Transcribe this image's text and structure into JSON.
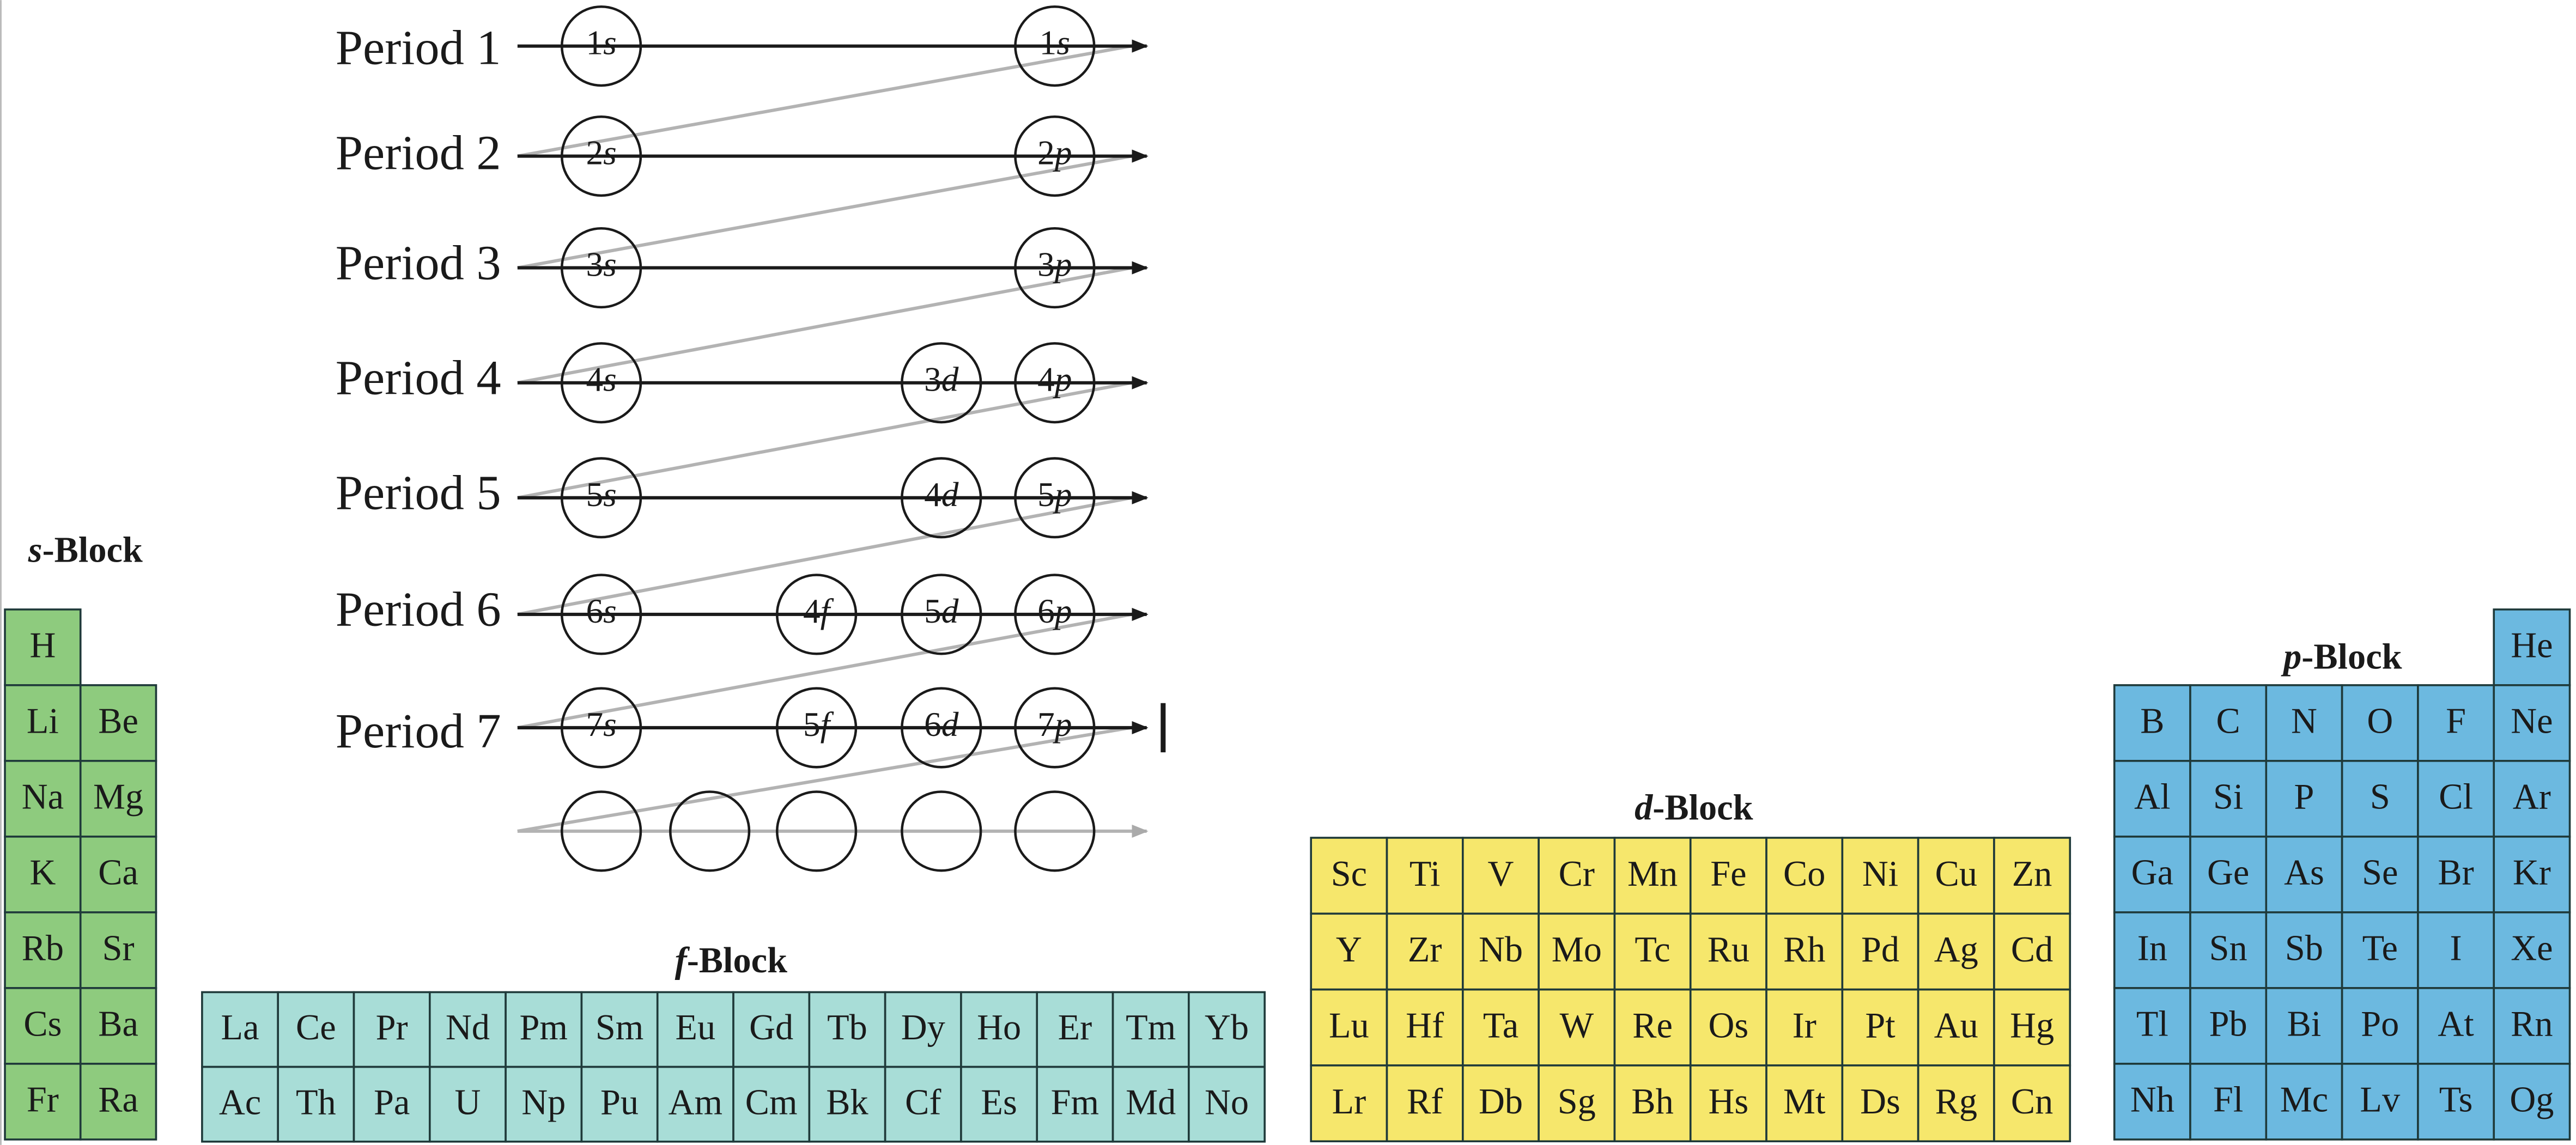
{
  "periods": [
    {
      "label": "Period 1",
      "orbitals": [
        {
          "n": "1",
          "sub": "s"
        },
        {
          "n": "1",
          "sub": "s"
        }
      ]
    },
    {
      "label": "Period 2",
      "orbitals": [
        {
          "n": "2",
          "sub": "s"
        },
        {
          "n": "2",
          "sub": "p"
        }
      ]
    },
    {
      "label": "Period 3",
      "orbitals": [
        {
          "n": "3",
          "sub": "s"
        },
        {
          "n": "3",
          "sub": "p"
        }
      ]
    },
    {
      "label": "Period 4",
      "orbitals": [
        {
          "n": "4",
          "sub": "s"
        },
        {
          "n": "3",
          "sub": "d"
        },
        {
          "n": "4",
          "sub": "p"
        }
      ]
    },
    {
      "label": "Period 5",
      "orbitals": [
        {
          "n": "5",
          "sub": "s"
        },
        {
          "n": "4",
          "sub": "d"
        },
        {
          "n": "5",
          "sub": "p"
        }
      ]
    },
    {
      "label": "Period 6",
      "orbitals": [
        {
          "n": "6",
          "sub": "s"
        },
        {
          "n": "4",
          "sub": "f"
        },
        {
          "n": "5",
          "sub": "d"
        },
        {
          "n": "6",
          "sub": "p"
        }
      ]
    },
    {
      "label": "Period 7",
      "orbitals": [
        {
          "n": "7",
          "sub": "s"
        },
        {
          "n": "5",
          "sub": "f"
        },
        {
          "n": "6",
          "sub": "d"
        },
        {
          "n": "7",
          "sub": "p"
        }
      ]
    }
  ],
  "blocks": [
    {
      "letter": "s",
      "suffix": "-Block",
      "color": "#8ecb7e",
      "rows": [
        [
          "H"
        ],
        [
          "Li",
          "Be"
        ],
        [
          "Na",
          "Mg"
        ],
        [
          "K",
          "Ca"
        ],
        [
          "Rb",
          "Sr"
        ],
        [
          "Cs",
          "Ba"
        ],
        [
          "Fr",
          "Ra"
        ]
      ]
    },
    {
      "letter": "f",
      "suffix": "-Block",
      "color": "#a8ddd7",
      "rows": [
        [
          "La",
          "Ce",
          "Pr",
          "Nd",
          "Pm",
          "Sm",
          "Eu",
          "Gd",
          "Tb",
          "Dy",
          "Ho",
          "Er",
          "Tm",
          "Yb"
        ],
        [
          "Ac",
          "Th",
          "Pa",
          "U",
          "Np",
          "Pu",
          "Am",
          "Cm",
          "Bk",
          "Cf",
          "Es",
          "Fm",
          "Md",
          "No"
        ]
      ]
    },
    {
      "letter": "d",
      "suffix": "-Block",
      "color": "#f6e76c",
      "rows": [
        [
          "Sc",
          "Ti",
          "V",
          "Cr",
          "Mn",
          "Fe",
          "Co",
          "Ni",
          "Cu",
          "Zn"
        ],
        [
          "Y",
          "Zr",
          "Nb",
          "Mo",
          "Tc",
          "Ru",
          "Rh",
          "Pd",
          "Ag",
          "Cd"
        ],
        [
          "Lu",
          "Hf",
          "Ta",
          "W",
          "Re",
          "Os",
          "Ir",
          "Pt",
          "Au",
          "Hg"
        ],
        [
          "Lr",
          "Rf",
          "Db",
          "Sg",
          "Bh",
          "Hs",
          "Mt",
          "Ds",
          "Rg",
          "Cn"
        ]
      ]
    },
    {
      "letter": "p",
      "suffix": "-Block",
      "color": "#6cb9e0",
      "rows": [
        [
          null,
          null,
          null,
          null,
          null,
          "He"
        ],
        [
          "B",
          "C",
          "N",
          "O",
          "F",
          "Ne"
        ],
        [
          "Al",
          "Si",
          "P",
          "S",
          "Cl",
          "Ar"
        ],
        [
          "Ga",
          "Ge",
          "As",
          "Se",
          "Br",
          "Kr"
        ],
        [
          "In",
          "Sn",
          "Sb",
          "Te",
          "I",
          "Xe"
        ],
        [
          "Tl",
          "Pb",
          "Bi",
          "Po",
          "At",
          "Rn"
        ],
        [
          "Nh",
          "Fl",
          "Mc",
          "Lv",
          "Ts",
          "Og"
        ]
      ]
    }
  ]
}
